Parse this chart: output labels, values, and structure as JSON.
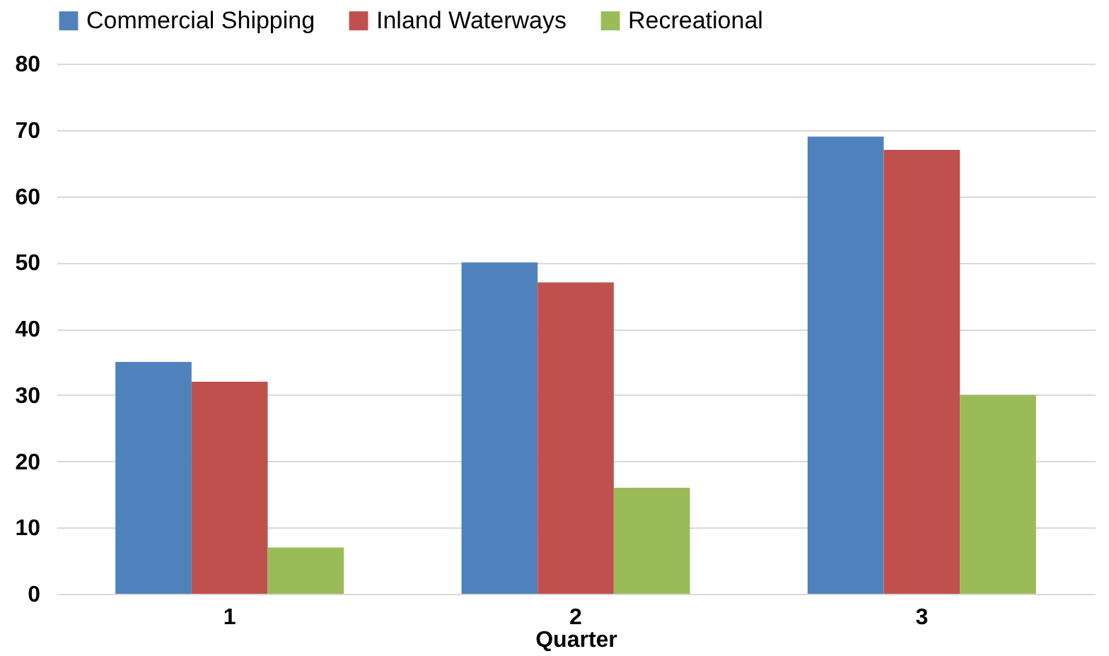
{
  "chart_data": {
    "type": "bar",
    "xlabel": "Quarter",
    "categories": [
      "1",
      "2",
      "3"
    ],
    "series": [
      {
        "name": "Commercial Shipping",
        "color": "#4f81bd",
        "values": [
          35,
          50,
          69
        ]
      },
      {
        "name": "Inland Waterways",
        "color": "#c0504d",
        "values": [
          32,
          47,
          67
        ]
      },
      {
        "name": "Recreational",
        "color": "#9bbb59",
        "values": [
          7,
          16,
          30
        ]
      }
    ],
    "ylim": [
      0,
      80
    ],
    "yticks": [
      0,
      10,
      20,
      30,
      40,
      50,
      60,
      70,
      80
    ],
    "grid": "y",
    "legend": "top"
  }
}
